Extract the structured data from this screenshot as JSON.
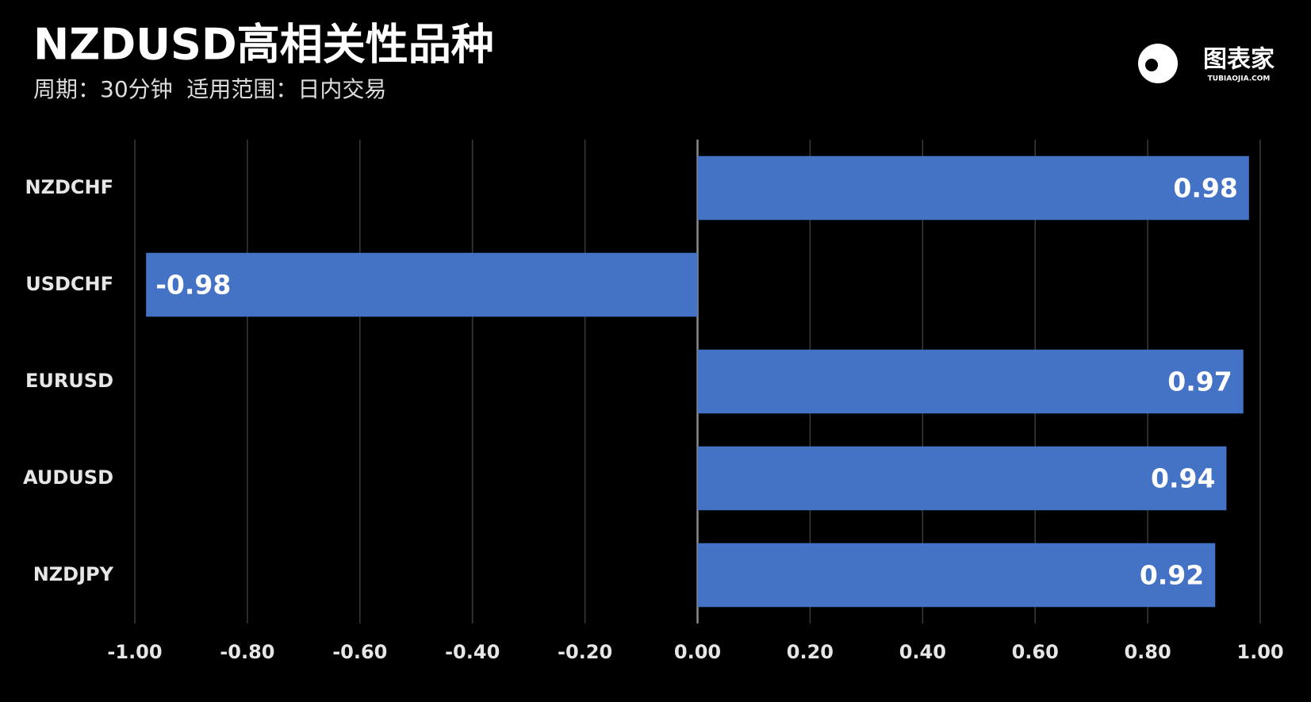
{
  "chart_data": {
    "type": "bar",
    "orientation": "horizontal",
    "title": "NZDUSD高相关性品种",
    "subtitle": "周期：30分钟  适用范围：日内交易",
    "categories": [
      "NZDCHF",
      "USDCHF",
      "EURUSD",
      "AUDUSD",
      "NZDJPY"
    ],
    "values": [
      0.98,
      -0.98,
      0.97,
      0.94,
      0.92
    ],
    "color": "#4472c4",
    "xlim": [
      -1,
      1
    ],
    "xticks": [
      {
        "value": -1,
        "label": "-1.00"
      },
      {
        "value": -0.8,
        "label": "-0.80"
      },
      {
        "value": -0.6,
        "label": "-0.60"
      },
      {
        "value": -0.4,
        "label": "-0.40"
      },
      {
        "value": -0.2,
        "label": "-0.20"
      },
      {
        "value": 0,
        "label": "0.00"
      },
      {
        "value": 0.2,
        "label": "0.20"
      },
      {
        "value": 0.4,
        "label": "0.40"
      },
      {
        "value": 0.6,
        "label": "0.60"
      },
      {
        "value": 0.8,
        "label": "0.80"
      },
      {
        "value": 1,
        "label": "1.00"
      }
    ],
    "grid": true
  },
  "logo": {
    "text": "图表家",
    "subtext": "TUBIAOJIA.COM"
  }
}
